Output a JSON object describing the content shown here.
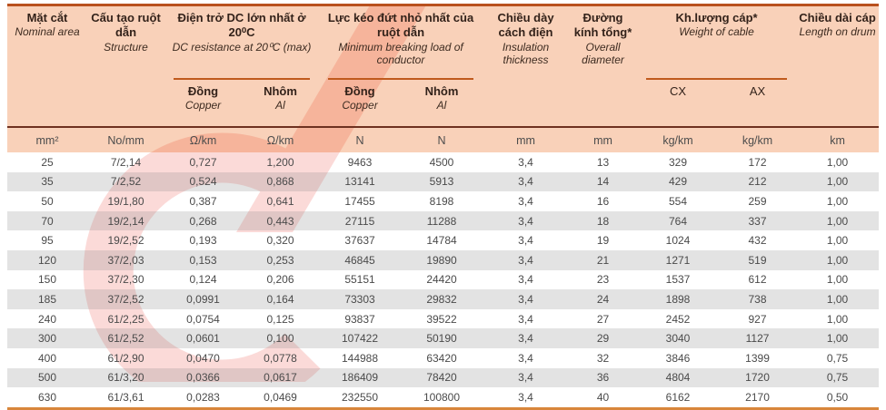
{
  "table": {
    "headers": {
      "nominal_area": {
        "vi": "Mặt cắt",
        "en": "Nominal area"
      },
      "structure": {
        "vi": "Cấu tạo ruột dẫn",
        "en": "Structure"
      },
      "dc_resistance": {
        "vi": "Điện trở DC lớn nhất ở 20⁰C",
        "en": "DC resistance at 20⁰C (max)"
      },
      "breaking_load": {
        "vi": "Lực kéo đứt nhỏ nhất của ruột dẫn",
        "en": "Minimum breaking load of conductor"
      },
      "insulation": {
        "vi": "Chiều dày cách điện",
        "en": "Insulation thickness"
      },
      "diameter": {
        "vi": "Đường kính tổng*",
        "en": "Overall diameter"
      },
      "weight": {
        "vi": "Kh.lượng cáp*",
        "en": "Weight of cable"
      },
      "length": {
        "vi": "Chiều dài cáp",
        "en": "Length on drum"
      },
      "copper": {
        "vi": "Đồng",
        "en": "Copper"
      },
      "aluminum": {
        "vi": "Nhôm",
        "en": "Al"
      },
      "cx": "CX",
      "ax": "AX"
    },
    "units": [
      "mm²",
      "No/mm",
      "Ω/km",
      "Ω/km",
      "N",
      "N",
      "mm",
      "mm",
      "kg/km",
      "kg/km",
      "km"
    ],
    "rows": [
      [
        "25",
        "7/2,14",
        "0,727",
        "1,200",
        "9463",
        "4500",
        "3,4",
        "13",
        "329",
        "172",
        "1,00"
      ],
      [
        "35",
        "7/2,52",
        "0,524",
        "0,868",
        "13141",
        "5913",
        "3,4",
        "14",
        "429",
        "212",
        "1,00"
      ],
      [
        "50",
        "19/1,80",
        "0,387",
        "0,641",
        "17455",
        "8198",
        "3,4",
        "16",
        "554",
        "259",
        "1,00"
      ],
      [
        "70",
        "19/2,14",
        "0,268",
        "0,443",
        "27115",
        "11288",
        "3,4",
        "18",
        "764",
        "337",
        "1,00"
      ],
      [
        "95",
        "19/2,52",
        "0,193",
        "0,320",
        "37637",
        "14784",
        "3,4",
        "19",
        "1024",
        "432",
        "1,00"
      ],
      [
        "120",
        "37/2,03",
        "0,153",
        "0,253",
        "46845",
        "19890",
        "3,4",
        "21",
        "1271",
        "519",
        "1,00"
      ],
      [
        "150",
        "37/2,30",
        "0,124",
        "0,206",
        "55151",
        "24420",
        "3,4",
        "23",
        "1537",
        "612",
        "1,00"
      ],
      [
        "185",
        "37/2,52",
        "0,0991",
        "0,164",
        "73303",
        "29832",
        "3,4",
        "24",
        "1898",
        "738",
        "1,00"
      ],
      [
        "240",
        "61/2,25",
        "0,0754",
        "0,125",
        "93837",
        "39522",
        "3,4",
        "27",
        "2452",
        "927",
        "1,00"
      ],
      [
        "300",
        "61/2,52",
        "0,0601",
        "0,100",
        "107422",
        "50190",
        "3,4",
        "29",
        "3040",
        "1127",
        "1,00"
      ],
      [
        "400",
        "61/2,90",
        "0,0470",
        "0,0778",
        "144988",
        "63420",
        "3,4",
        "32",
        "3846",
        "1399",
        "0,75"
      ],
      [
        "500",
        "61/3,20",
        "0,0366",
        "0,0617",
        "186409",
        "78420",
        "3,4",
        "36",
        "4804",
        "1720",
        "0,75"
      ],
      [
        "630",
        "61/3,61",
        "0,0283",
        "0,0469",
        "232550",
        "100800",
        "3,4",
        "40",
        "6162",
        "2170",
        "0,50"
      ]
    ]
  },
  "colors": {
    "header_bg": "#f8c9ae",
    "top_border": "#b9511e",
    "bottom_border": "#d8863b",
    "group_rule": "#c05a1d",
    "dark_rule": "#6e3120",
    "alt_row": "#dedede",
    "watermark_red": "#e8362a"
  }
}
